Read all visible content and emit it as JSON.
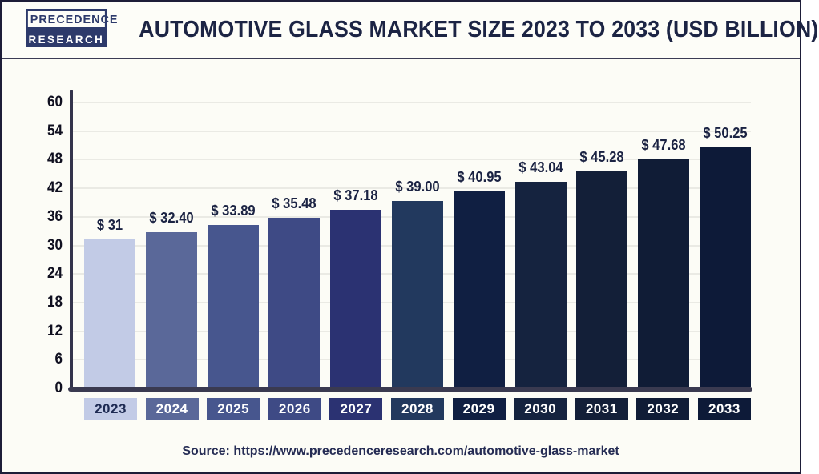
{
  "logo": {
    "line1": "PRECEDENCE",
    "line2": "RESEARCH"
  },
  "title": "AUTOMOTIVE GLASS MARKET SIZE 2023 TO 2033 (USD BILLION)",
  "source": {
    "label": "Source:",
    "url": "https://www.precedenceresearch.com/automotive-glass-market"
  },
  "colors": {
    "accent_navy": "#2d3a6b",
    "title_text": "#1c2444",
    "axis": "#3a3a50",
    "gridline": "#eaeae4",
    "background": "#fcfcf6"
  },
  "chart_data": {
    "type": "bar",
    "title": "Automotive Glass Market Size 2023 to 2033 (USD Billion)",
    "xlabel": "",
    "ylabel": "",
    "ylim": [
      0,
      60
    ],
    "yticks": [
      0,
      6,
      12,
      18,
      24,
      30,
      36,
      42,
      48,
      54,
      60
    ],
    "grid": true,
    "legend": "none",
    "categories": [
      "2023",
      "2024",
      "2025",
      "2026",
      "2027",
      "2028",
      "2029",
      "2030",
      "2031",
      "2032",
      "2033"
    ],
    "values": [
      31,
      32.4,
      33.89,
      35.48,
      37.18,
      39.0,
      40.95,
      43.04,
      45.28,
      47.68,
      50.25
    ],
    "value_labels": [
      "$ 31",
      "$ 32.40",
      "$ 33.89",
      "$ 35.48",
      "$ 37.18",
      "$ 39.00",
      "$ 40.95",
      "$ 43.04",
      "$ 45.28",
      "$ 47.68",
      "$ 50.25"
    ],
    "bar_colors": [
      "#c2cbe6",
      "#5a6899",
      "#47568e",
      "#3e4a85",
      "#2b3272",
      "#22395e",
      "#101f42",
      "#15233f",
      "#131f38",
      "#101c36",
      "#0d1a38"
    ],
    "category_text_colors": [
      "#1d2a52",
      "#ffffff",
      "#ffffff",
      "#ffffff",
      "#ffffff",
      "#ffffff",
      "#ffffff",
      "#ffffff",
      "#ffffff",
      "#ffffff",
      "#ffffff"
    ]
  }
}
